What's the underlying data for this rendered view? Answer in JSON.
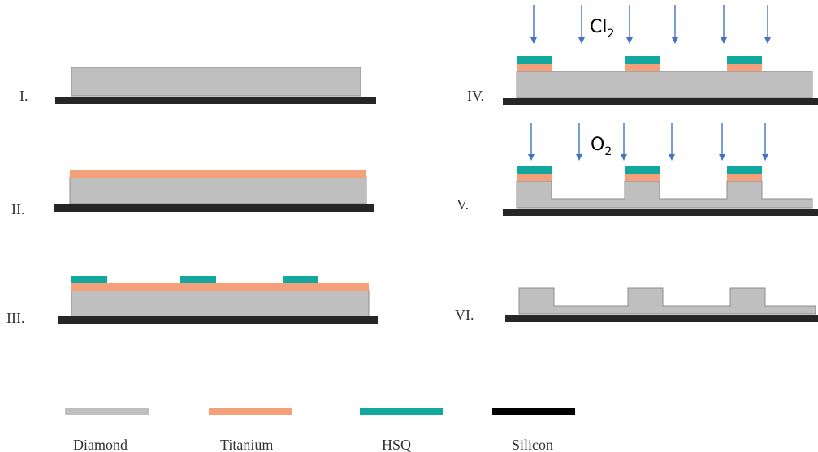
{
  "steps": {
    "s1": "I.",
    "s2": "II.",
    "s3": "III.",
    "s4": "IV.",
    "s5": "V.",
    "s6": "VI."
  },
  "gases": {
    "etch4": {
      "main": "Cl",
      "sub": "2"
    },
    "etch5": {
      "main": "O",
      "sub": "2"
    }
  },
  "legend": [
    {
      "label": "Diamond",
      "color": "#bfbfbf"
    },
    {
      "label": "Titanium",
      "color": "#f4a07a"
    },
    {
      "label": "HSQ",
      "color": "#13a89e"
    },
    {
      "label": "Silicon",
      "color": "#000000"
    }
  ],
  "colors": {
    "diamond": "#bfbfbf",
    "diamond_edge": "#8c8c8c",
    "titanium": "#f4a07a",
    "hsq": "#13a89e",
    "silicon": "#262626",
    "arrow": "#4472c4"
  }
}
